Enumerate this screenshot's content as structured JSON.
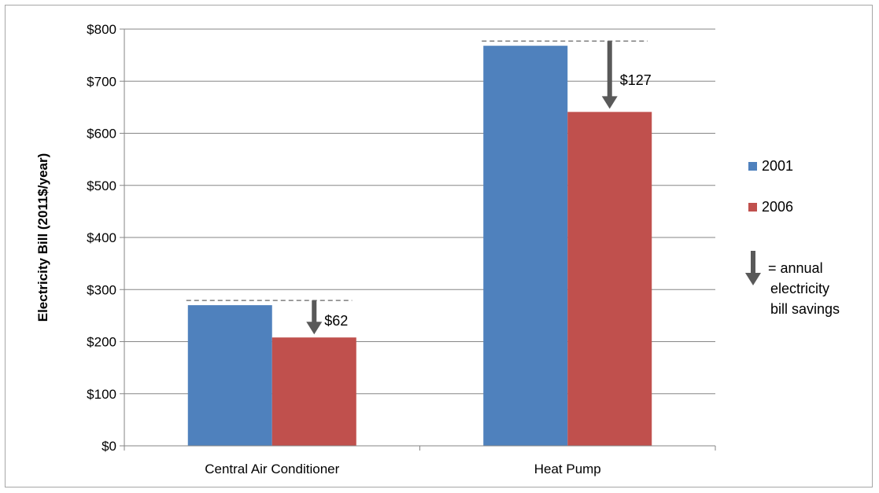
{
  "chart_data": {
    "type": "bar",
    "categories": [
      "Central Air Conditioner",
      "Heat Pump"
    ],
    "series": [
      {
        "name": "2001",
        "color": "#4f81bd",
        "values": [
          270,
          768
        ]
      },
      {
        "name": "2006",
        "color": "#c0504d",
        "values": [
          208,
          641
        ]
      }
    ],
    "ylabel": "Electricity Bill (2011$/year)",
    "xlabel": "",
    "ylim": [
      0,
      800
    ],
    "yticks": [
      0,
      100,
      200,
      300,
      400,
      500,
      600,
      700,
      800
    ],
    "ytick_labels": [
      "$0",
      "$100",
      "$200",
      "$300",
      "$400",
      "$500",
      "$600",
      "$700",
      "$800"
    ],
    "grid": true,
    "legend_position": "right",
    "savings": [
      {
        "category": "Central Air Conditioner",
        "from": 270,
        "to": 208,
        "label": "$62"
      },
      {
        "category": "Heat Pump",
        "from": 768,
        "to": 641,
        "label": "$127"
      }
    ],
    "legend_note": [
      "= annual",
      "electricity",
      "bill savings"
    ],
    "colors": {
      "arrow": "#595959",
      "grid": "#868686",
      "axis": "#868686"
    }
  }
}
